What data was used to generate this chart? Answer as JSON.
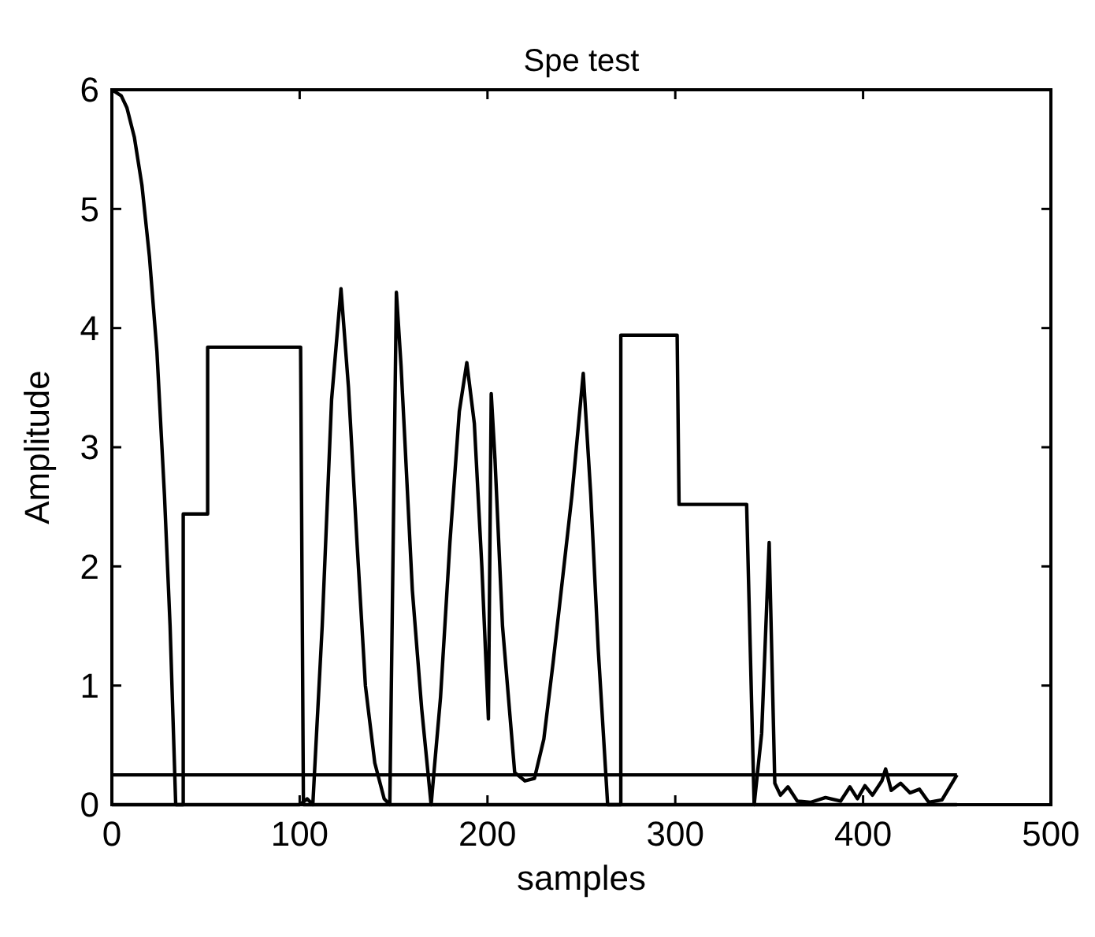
{
  "chart_data": {
    "type": "line",
    "title": "Spe test",
    "xlabel": "samples",
    "ylabel": "Amplitude",
    "xlim": [
      0,
      500
    ],
    "ylim": [
      0,
      6
    ],
    "xticks": [
      0,
      100,
      200,
      300,
      400,
      500
    ],
    "yticks": [
      0,
      1,
      2,
      3,
      4,
      5,
      6
    ],
    "grid": false,
    "line_style": "solid",
    "series": [
      {
        "color": "#000000",
        "x": [
          0,
          5,
          8,
          12,
          16,
          20,
          24,
          28,
          31,
          34,
          100,
          104,
          107,
          112,
          117,
          122,
          126,
          130.6,
          135,
          140,
          145,
          148,
          151.5,
          154,
          156,
          160,
          165,
          170,
          175,
          180,
          185,
          189,
          193,
          197,
          200.5,
          202,
          204,
          208,
          214.5,
          220,
          225,
          230,
          235,
          240,
          245,
          251,
          255,
          259,
          264,
          300,
          342,
          346,
          350,
          353,
          356,
          360,
          365,
          372,
          380,
          388,
          393,
          397,
          401,
          405,
          410,
          412,
          415,
          420,
          425,
          430,
          435,
          442,
          450
        ],
        "values": [
          6,
          5.95,
          5.85,
          5.6,
          5.2,
          4.6,
          3.8,
          2.6,
          1.5,
          0,
          0,
          0.05,
          0,
          1.5,
          3.4,
          4.33,
          3.5,
          2.18,
          1,
          0.35,
          0.05,
          0,
          4.3,
          3.68,
          3.06,
          1.8,
          0.8,
          0,
          0.9,
          2.2,
          3.3,
          3.71,
          3.2,
          2,
          0.72,
          3.45,
          2.9,
          1.5,
          0.27,
          0.2,
          0.22,
          0.55,
          1.2,
          1.9,
          2.6,
          3.62,
          2.6,
          1.3,
          0,
          0,
          0,
          0.6,
          2.2,
          0.18,
          0.08,
          0.15,
          0.03,
          0.02,
          0.06,
          0.03,
          0.15,
          0.05,
          0.16,
          0.08,
          0.2,
          0.3,
          0.12,
          0.18,
          0.1,
          0.13,
          0.02,
          0.04,
          0.25
        ]
      },
      {
        "color": "#000000",
        "x": [
          0,
          38,
          38,
          51,
          51,
          100.5,
          102,
          271,
          271,
          301,
          302,
          338,
          342,
          450
        ],
        "values": [
          0,
          0,
          2.44,
          2.44,
          3.84,
          3.84,
          0,
          0,
          3.94,
          3.94,
          2.52,
          2.52,
          0,
          0
        ]
      },
      {
        "color": "#000000",
        "x": [
          0,
          450
        ],
        "values": [
          0.25,
          0.25
        ]
      }
    ]
  }
}
